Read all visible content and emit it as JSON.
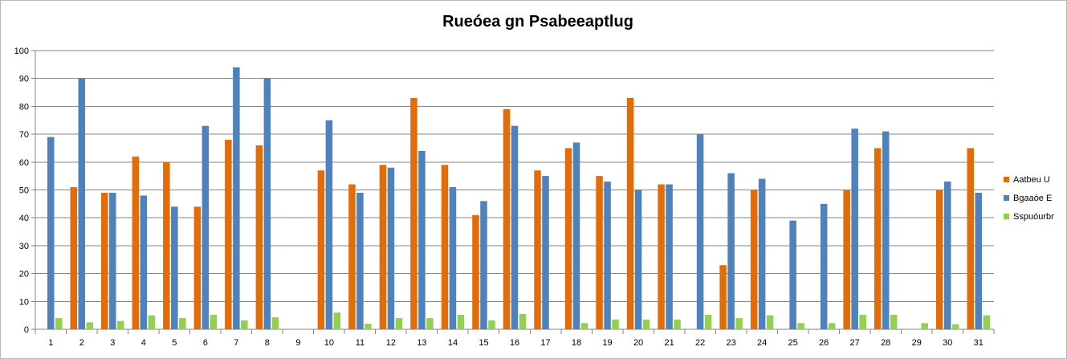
{
  "chart_data": {
    "type": "bar",
    "title": "Rueóea gn Psabeeaptlug",
    "xlabel": "",
    "ylabel": "",
    "ylim": [
      0,
      100
    ],
    "yticks": [
      0,
      10,
      20,
      30,
      40,
      50,
      60,
      70,
      80,
      90,
      100
    ],
    "grid": true,
    "legend_position": "right",
    "categories": [
      "1",
      "2",
      "3",
      "4",
      "5",
      "6",
      "7",
      "8",
      "9",
      "10",
      "11",
      "12",
      "13",
      "14",
      "15",
      "16",
      "17",
      "18",
      "19",
      "20",
      "21",
      "22",
      "23",
      "24",
      "25",
      "26",
      "27",
      "28",
      "29",
      "30",
      "31"
    ],
    "series": [
      {
        "name": "Aatbeu U",
        "color": "#e36c09",
        "values": [
          null,
          51,
          49,
          62,
          60,
          44,
          68,
          66,
          null,
          57,
          52,
          59,
          83,
          59,
          41,
          79,
          57,
          65,
          55,
          83,
          52,
          null,
          23,
          50,
          null,
          null,
          50,
          65,
          null,
          50,
          65
        ]
      },
      {
        "name": "Bgaaóe E",
        "color": "#4f81bd",
        "values": [
          69,
          90,
          49,
          48,
          44,
          73,
          94,
          90,
          null,
          75,
          49,
          58,
          64,
          51,
          46,
          73,
          55,
          67,
          53,
          50,
          52,
          70,
          56,
          54,
          39,
          45,
          72,
          71,
          null,
          53,
          49
        ]
      },
      {
        "name": "Sspuóurbr",
        "color": "#92d050",
        "values": [
          4,
          2.5,
          3,
          5,
          4,
          5.2,
          3.2,
          4.3,
          null,
          6,
          2,
          4,
          4,
          5.2,
          3.2,
          5.5,
          null,
          2.2,
          3.5,
          3.5,
          3.5,
          5.2,
          4,
          5,
          2.2,
          2.2,
          5.2,
          5.2,
          2.2,
          1.8,
          5
        ]
      }
    ]
  }
}
